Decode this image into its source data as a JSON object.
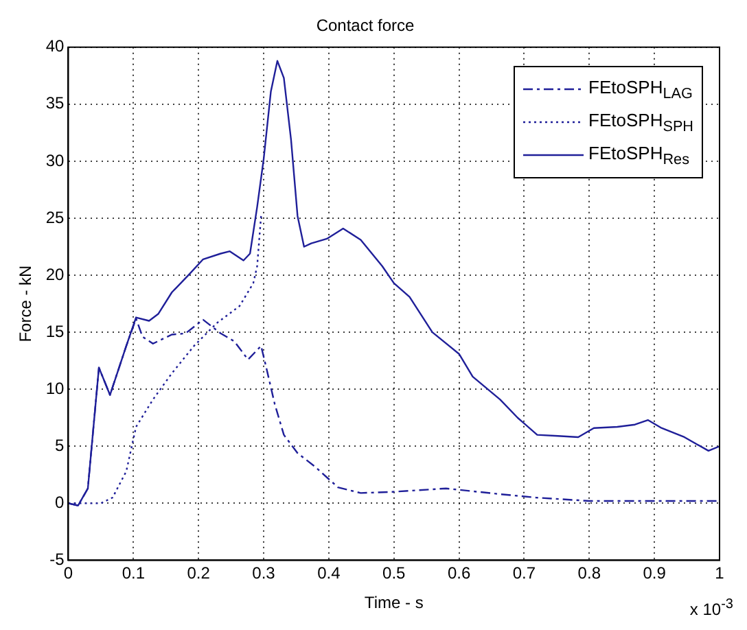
{
  "chart_data": {
    "type": "line",
    "title": "Contact force",
    "xlabel": "Time - s",
    "ylabel": "Force - kN",
    "xlim": [
      0,
      1
    ],
    "ylim": [
      -5,
      40
    ],
    "xticks": [
      0,
      0.1,
      0.2,
      0.3,
      0.4,
      0.5,
      0.6,
      0.7,
      0.8,
      0.9,
      1
    ],
    "yticks": [
      -5,
      0,
      5,
      10,
      15,
      20,
      25,
      30,
      35,
      40
    ],
    "grid": true,
    "legend": "top right",
    "annotations": [
      "x 10$^{-3}$"
    ],
    "series": [
      {
        "name": "FEtoSPH$_{LAG}$",
        "color": "#1f1f99",
        "line_style": "dashed",
        "x": [
          0,
          0.015,
          0.03,
          0.047,
          0.064,
          0.089,
          0.104,
          0.114,
          0.13,
          0.159,
          0.18,
          0.207,
          0.234,
          0.255,
          0.276,
          0.296,
          0.304,
          0.317,
          0.331,
          0.352,
          0.379,
          0.414,
          0.449,
          0.497,
          0.58,
          0.663,
          0.718,
          0.8,
          0.9,
          1
        ],
        "values": [
          0,
          -0.2,
          1.3,
          11.9,
          9.5,
          13.8,
          16.2,
          14.6,
          14,
          14.8,
          14.9,
          16.1,
          14.9,
          14.2,
          12.6,
          13.8,
          11.9,
          8.7,
          6,
          4.4,
          3.2,
          1.4,
          0.9,
          1,
          1.3,
          0.8,
          0.5,
          0.2,
          0.2,
          0.2
        ]
      },
      {
        "name": "FEtoSPH$_{SPH}$",
        "color": "#1f1f99",
        "line_style": "dotted",
        "x": [
          0,
          0.05,
          0.068,
          0.089,
          0.104,
          0.13,
          0.159,
          0.193,
          0.228,
          0.263,
          0.284,
          0.29,
          0.296
        ],
        "values": [
          0,
          0,
          0.5,
          2.8,
          6.7,
          9.1,
          11.4,
          13.8,
          15.8,
          17.3,
          19.3,
          20.8,
          25.2
        ]
      },
      {
        "name": "FEtoSPH$_{Res}$",
        "color": "#1f1f99",
        "line_style": "solid",
        "x": [
          0,
          0.015,
          0.03,
          0.047,
          0.064,
          0.089,
          0.104,
          0.124,
          0.138,
          0.159,
          0.186,
          0.207,
          0.234,
          0.248,
          0.269,
          0.279,
          0.29,
          0.3,
          0.311,
          0.321,
          0.331,
          0.342,
          0.352,
          0.362,
          0.373,
          0.397,
          0.422,
          0.449,
          0.482,
          0.5,
          0.524,
          0.559,
          0.6,
          0.621,
          0.663,
          0.69,
          0.72,
          0.752,
          0.783,
          0.807,
          0.843,
          0.87,
          0.89,
          0.911,
          0.946,
          0.983,
          1
        ],
        "values": [
          0,
          -0.2,
          1.3,
          11.9,
          9.5,
          13.8,
          16.3,
          16,
          16.6,
          18.5,
          20.1,
          21.4,
          21.9,
          22.1,
          21.3,
          21.9,
          26,
          30.2,
          36.1,
          38.8,
          37.3,
          31.9,
          25.2,
          22.5,
          22.8,
          23.2,
          24.1,
          23.1,
          20.8,
          19.3,
          18.1,
          15,
          13.1,
          11.1,
          9.1,
          7.5,
          6,
          5.9,
          5.8,
          6.6,
          6.7,
          6.9,
          7.3,
          6.6,
          5.8,
          4.6,
          5
        ]
      }
    ]
  }
}
